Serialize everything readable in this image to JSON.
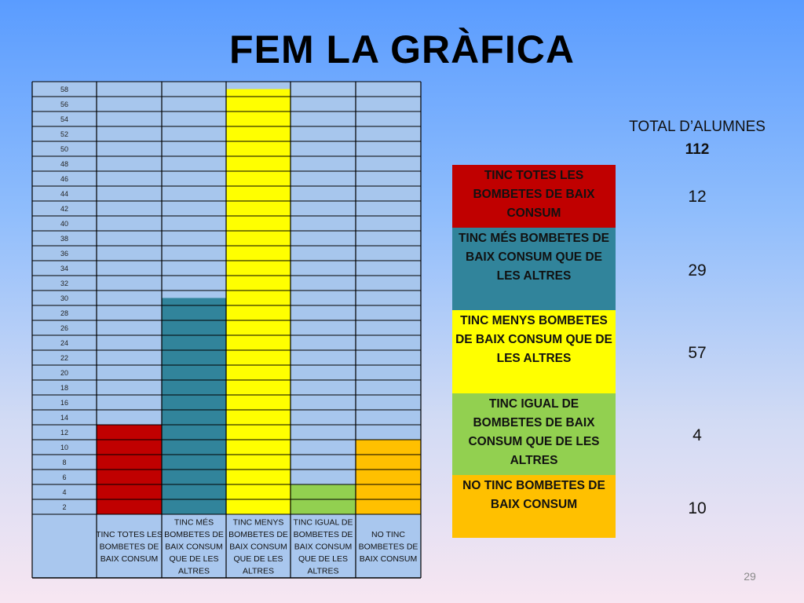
{
  "title": "FEM LA GRÀFICA",
  "total_label": "TOTAL D’ALUMNES",
  "total_value": "112",
  "page_number": "29",
  "colors": {
    "red": "#c00000",
    "teal": "#31849b",
    "yellow": "#ffff00",
    "green": "#92d050",
    "orange": "#ffc000",
    "cell": "#a7c6ed"
  },
  "chart_data": {
    "type": "bar",
    "ylim": [
      0,
      58
    ],
    "y_ticks": [
      "58",
      "56",
      "54",
      "52",
      "50",
      "48",
      "46",
      "44",
      "42",
      "40",
      "38",
      "36",
      "34",
      "32",
      "30",
      "28",
      "26",
      "24",
      "22",
      "20",
      "18",
      "16",
      "14",
      "12",
      "10",
      "8",
      "6",
      "4",
      "2"
    ],
    "categories": [
      "TINC TOTES LES BOMBETES DE BAIX CONSUM",
      "TINC MÉS BOMBETES DE BAIX CONSUM QUE DE LES ALTRES",
      "TINC MENYS BOMBETES DE BAIX CONSUM QUE DE LES ALTRES",
      "TINC IGUAL DE BOMBETES DE BAIX CONSUM QUE DE LES ALTRES",
      "NO TINC BOMBETES DE BAIX CONSUM"
    ],
    "values": [
      12,
      29,
      57,
      4,
      10
    ],
    "bar_colors": [
      "#c00000",
      "#31849b",
      "#ffff00",
      "#92d050",
      "#ffc000"
    ]
  },
  "legend": [
    {
      "label": "TINC TOTES LES BOMBETES DE BAIX CONSUM",
      "count": "12",
      "color": "#c00000"
    },
    {
      "label": "TINC MÉS BOMBETES DE BAIX CONSUM QUE DE LES ALTRES",
      "count": "29",
      "color": "#31849b"
    },
    {
      "label": "TINC MENYS BOMBETES DE BAIX CONSUM QUE DE LES ALTRES",
      "count": "57",
      "color": "#ffff00"
    },
    {
      "label": "TINC IGUAL DE BOMBETES DE BAIX CONSUM QUE DE LES ALTRES",
      "count": "4",
      "color": "#92d050"
    },
    {
      "label": "NO TINC BOMBETES DE BAIX CONSUM",
      "count": "10",
      "color": "#ffc000"
    }
  ]
}
